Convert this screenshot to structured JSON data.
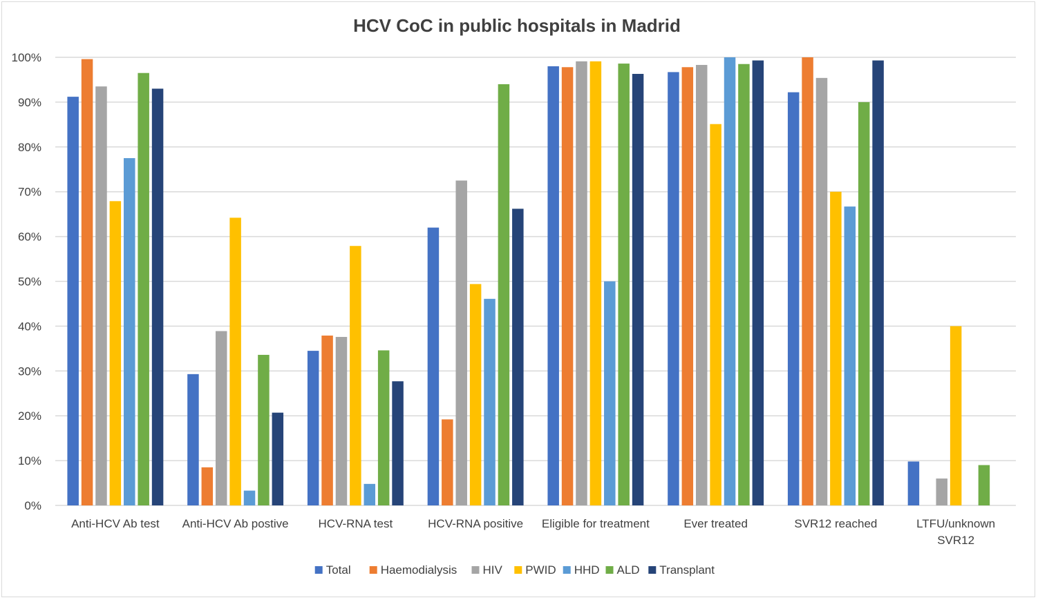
{
  "chart_data": {
    "type": "bar",
    "title": "HCV CoC in public hospitals in Madrid",
    "xlabel": "",
    "ylabel": "",
    "ylim": [
      0,
      100
    ],
    "y_ticks": [
      "0%",
      "10%",
      "20%",
      "30%",
      "40%",
      "50%",
      "60%",
      "70%",
      "80%",
      "90%",
      "100%"
    ],
    "grid": true,
    "legend_position": "bottom",
    "categories": [
      [
        "Anti-HCV Ab test"
      ],
      [
        "Anti-HCV Ab postive"
      ],
      [
        "HCV-RNA test"
      ],
      [
        "HCV-RNA positive"
      ],
      [
        "Eligible for treatment"
      ],
      [
        "Ever treated"
      ],
      [
        "SVR12 reached"
      ],
      [
        "LTFU/unknown",
        "SVR12"
      ]
    ],
    "series": [
      {
        "name": "Total",
        "color": "#4472c4",
        "values": [
          91.2,
          29.3,
          34.5,
          62.0,
          98.0,
          96.7,
          92.2,
          9.8
        ]
      },
      {
        "name": "Haemodialysis",
        "color": "#ed7d31",
        "values": [
          99.6,
          8.5,
          37.9,
          19.2,
          97.8,
          97.8,
          100,
          0
        ]
      },
      {
        "name": "HIV",
        "color": "#a5a5a5",
        "values": [
          93.5,
          38.9,
          37.6,
          72.5,
          99.1,
          98.3,
          95.4,
          6.0
        ]
      },
      {
        "name": "PWID",
        "color": "#ffc000",
        "values": [
          67.9,
          64.2,
          57.9,
          49.4,
          99.1,
          85.1,
          70.0,
          40.0
        ]
      },
      {
        "name": "HHD",
        "color": "#5b9bd5",
        "values": [
          77.5,
          3.3,
          4.8,
          46.1,
          50.0,
          100,
          66.7,
          0
        ]
      },
      {
        "name": "ALD",
        "color": "#70ad47",
        "values": [
          96.5,
          33.6,
          34.6,
          94.0,
          98.6,
          98.5,
          90.0,
          9.0
        ]
      },
      {
        "name": "Transplant",
        "color": "#264478",
        "values": [
          93.0,
          20.7,
          27.7,
          66.2,
          96.3,
          99.3,
          99.3,
          0
        ]
      }
    ]
  }
}
